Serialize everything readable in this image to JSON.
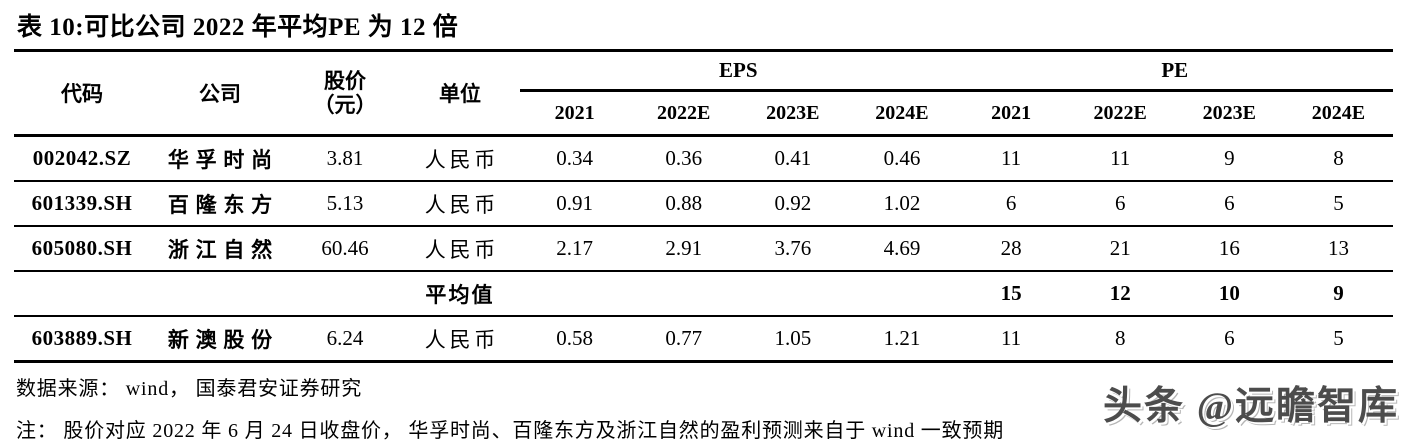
{
  "title": "表 10:可比公司 2022 年平均PE 为 12 倍",
  "table": {
    "headers": {
      "code": "代码",
      "company": "公司",
      "price_line1": "股价",
      "price_line2": "（元）",
      "unit": "单位",
      "eps_group": "EPS",
      "pe_group": "PE",
      "eps_years": [
        "2021",
        "2022E",
        "2023E",
        "2024E"
      ],
      "pe_years": [
        "2021",
        "2022E",
        "2023E",
        "2024E"
      ]
    },
    "rows": [
      {
        "code": "002042.SZ",
        "company": "华孚时尚",
        "price": "3.81",
        "unit": "人民币",
        "eps": [
          "0.34",
          "0.36",
          "0.41",
          "0.46"
        ],
        "pe": [
          "11",
          "11",
          "9",
          "8"
        ]
      },
      {
        "code": "601339.SH",
        "company": "百隆东方",
        "price": "5.13",
        "unit": "人民币",
        "eps": [
          "0.91",
          "0.88",
          "0.92",
          "1.02"
        ],
        "pe": [
          "6",
          "6",
          "6",
          "5"
        ]
      },
      {
        "code": "605080.SH",
        "company": "浙江自然",
        "price": "60.46",
        "unit": "人民币",
        "eps": [
          "2.17",
          "2.91",
          "3.76",
          "4.69"
        ],
        "pe": [
          "28",
          "21",
          "16",
          "13"
        ]
      }
    ],
    "average_row": {
      "label": "平均值",
      "pe": [
        "15",
        "12",
        "10",
        "9"
      ]
    },
    "extra_row": {
      "code": "603889.SH",
      "company": "新澳股份",
      "price": "6.24",
      "unit": "人民币",
      "eps": [
        "0.58",
        "0.77",
        "1.05",
        "1.21"
      ],
      "pe": [
        "11",
        "8",
        "6",
        "5"
      ]
    },
    "source": "数据来源： wind， 国泰君安证券研究",
    "note": "注： 股价对应 2022 年 6 月 24 日收盘价， 华孚时尚、百隆东方及浙江自然的盈利预测来自于 wind 一致预期"
  },
  "watermark": "头条 @远瞻智库"
}
